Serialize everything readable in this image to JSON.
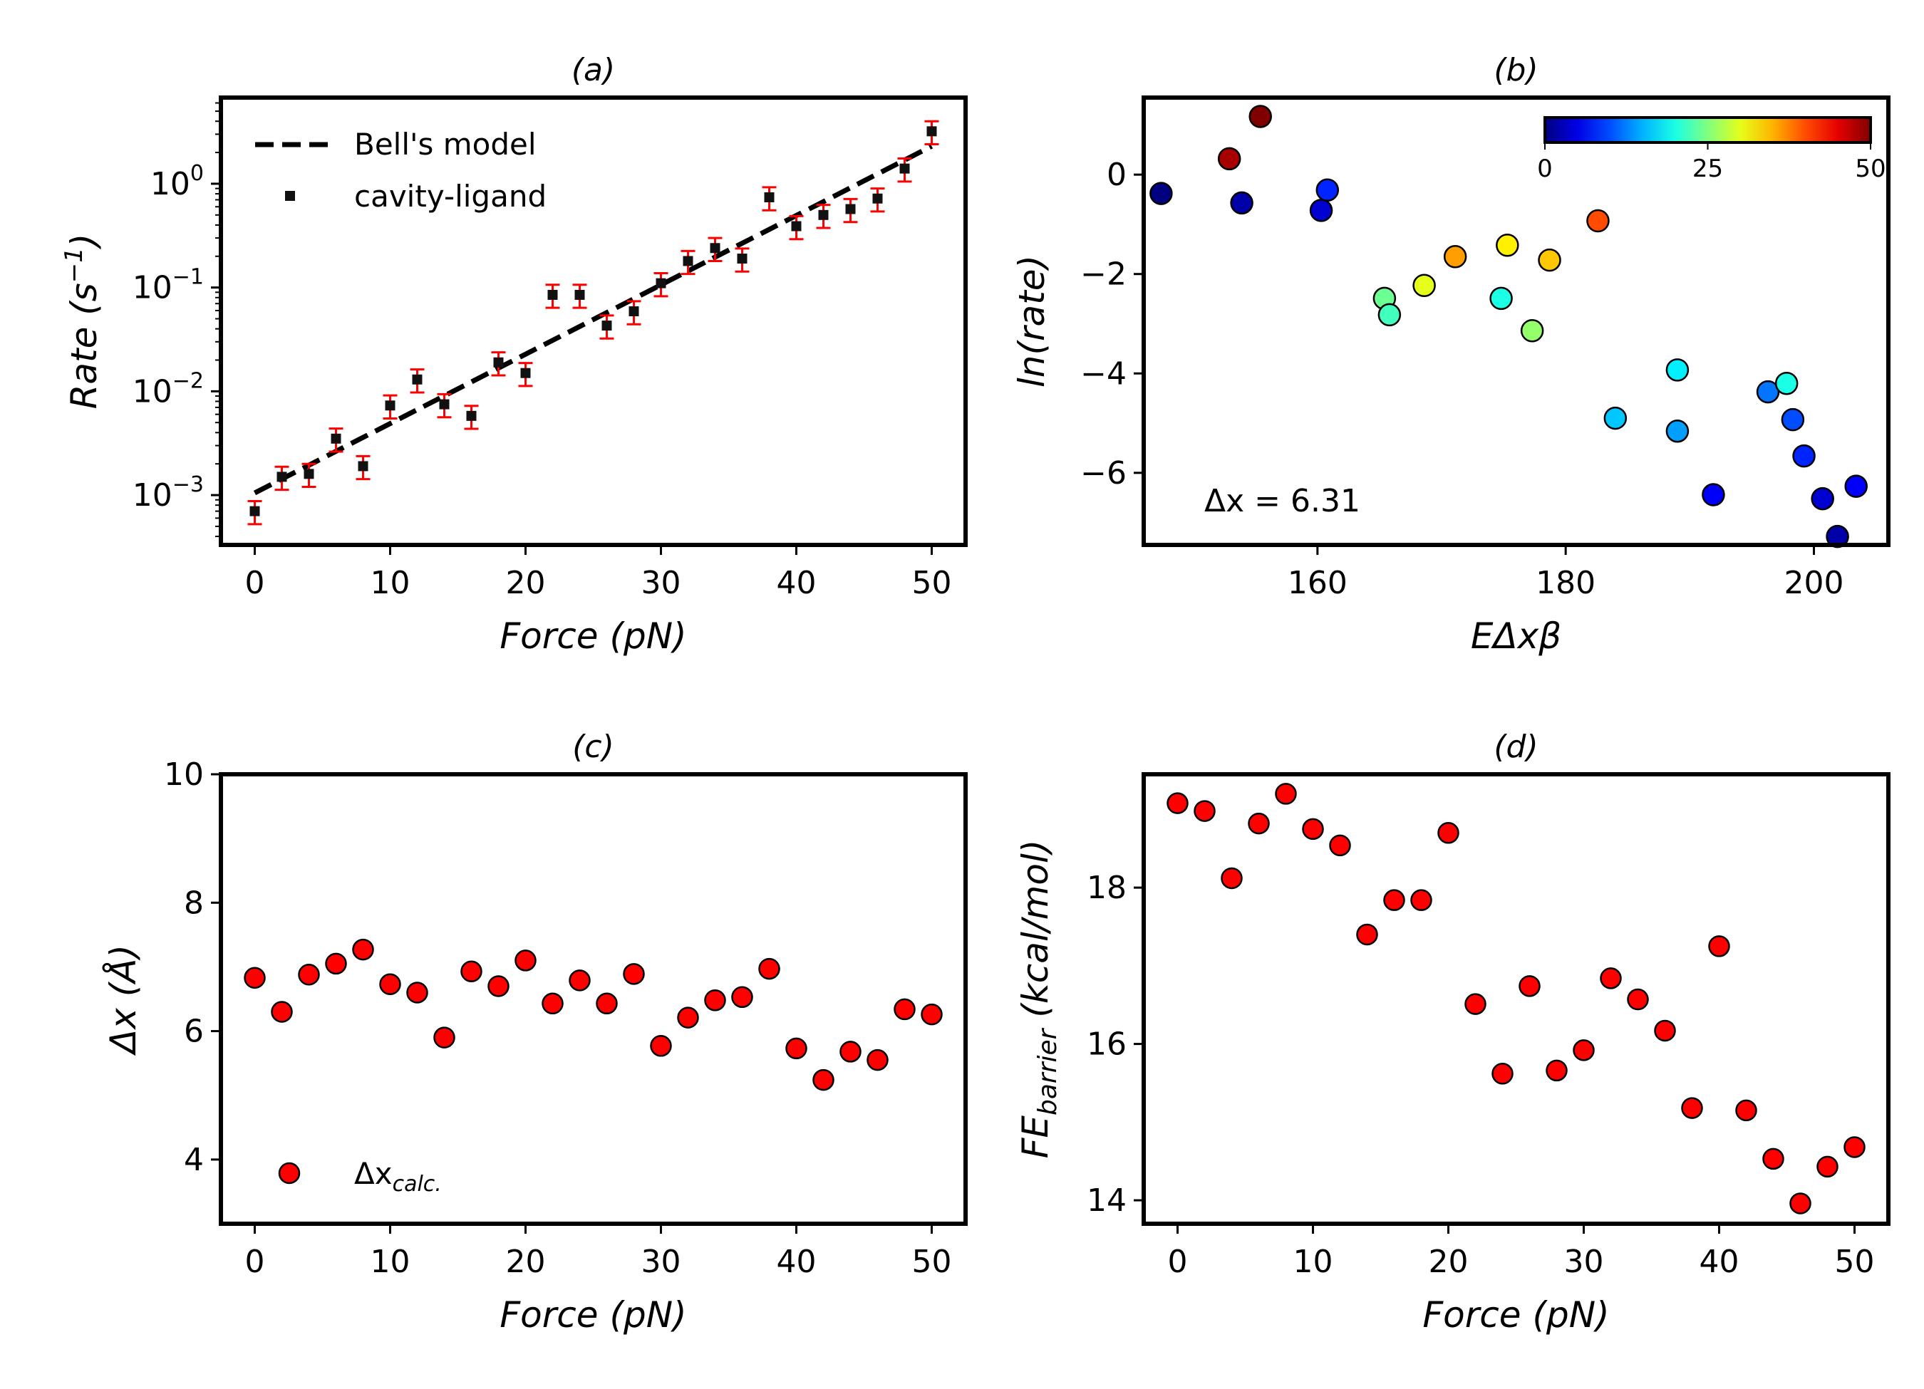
{
  "chart_data": [
    {
      "panel": "a",
      "type": "scatter",
      "title": "(a)",
      "xlabel": "Force (pN)",
      "ylabel": "Rate (s⁻¹)",
      "yscale": "log",
      "xlim": [
        -2.5,
        52.5
      ],
      "xticks": [
        0,
        10,
        20,
        30,
        40,
        50
      ],
      "yticks": [
        {
          "value": 0.001,
          "base": "10",
          "exp": "−3"
        },
        {
          "value": 0.01,
          "base": "10",
          "exp": "−2"
        },
        {
          "value": 0.1,
          "base": "10",
          "exp": "−1"
        },
        {
          "value": 1,
          "base": "10",
          "exp": "0"
        }
      ],
      "legend": {
        "placement": "upper-left",
        "entries": [
          "Bell's model",
          "cavity-ligand"
        ]
      },
      "series": [
        {
          "name": "cavity-ligand",
          "marker": "square",
          "color": "#111111",
          "errorbar_color": "#ff0000",
          "x": [
            0,
            2,
            4,
            6,
            8,
            10,
            12,
            14,
            16,
            18,
            20,
            22,
            24,
            26,
            28,
            30,
            32,
            34,
            36,
            38,
            40,
            42,
            44,
            46,
            48,
            50
          ],
          "y": [
            0.0007,
            0.0015,
            0.0016,
            0.0035,
            0.0019,
            0.0073,
            0.013,
            0.0075,
            0.0058,
            0.019,
            0.015,
            0.085,
            0.085,
            0.043,
            0.059,
            0.11,
            0.18,
            0.24,
            0.19,
            0.74,
            0.39,
            0.5,
            0.57,
            0.72,
            1.4,
            3.2
          ],
          "yerr_rel": 0.25
        },
        {
          "name": "Bell's model",
          "type": "line",
          "style": "dashed",
          "color": "#000000",
          "x": [
            0,
            50
          ],
          "y": [
            0.00105,
            2.3
          ]
        }
      ]
    },
    {
      "panel": "b",
      "type": "scatter",
      "title": "(b)",
      "xlabel": "EΔxβ",
      "ylabel": "ln(rate)",
      "xlim": [
        146,
        206
      ],
      "ylim": [
        -7.45,
        1.55
      ],
      "xticks": [
        160,
        180,
        200
      ],
      "yticks": [
        0,
        -2,
        -4,
        -6
      ],
      "annotation": "Δx = 6.31",
      "colorbar": {
        "colormap": "jet",
        "range": [
          0,
          50
        ],
        "ticks": [
          0,
          25,
          50
        ],
        "placement": "top-right"
      },
      "points": [
        {
          "x": 147.4,
          "y": -0.38,
          "c": 0
        },
        {
          "x": 152.9,
          "y": 0.32,
          "c": 48
        },
        {
          "x": 153.9,
          "y": -0.57,
          "c": 2
        },
        {
          "x": 155.4,
          "y": 1.17,
          "c": 50
        },
        {
          "x": 160.3,
          "y": -0.72,
          "c": 4
        },
        {
          "x": 160.8,
          "y": -0.31,
          "c": 8
        },
        {
          "x": 165.4,
          "y": -2.49,
          "c": 24
        },
        {
          "x": 165.8,
          "y": -2.82,
          "c": 22
        },
        {
          "x": 168.6,
          "y": -2.23,
          "c": 30
        },
        {
          "x": 171.1,
          "y": -1.65,
          "c": 36
        },
        {
          "x": 174.8,
          "y": -2.49,
          "c": 20
        },
        {
          "x": 175.3,
          "y": -1.42,
          "c": 32
        },
        {
          "x": 177.3,
          "y": -3.14,
          "c": 26
        },
        {
          "x": 178.7,
          "y": -1.72,
          "c": 34
        },
        {
          "x": 182.6,
          "y": -0.93,
          "c": 40
        },
        {
          "x": 184.0,
          "y": -4.9,
          "c": 16
        },
        {
          "x": 189.0,
          "y": -3.93,
          "c": 18
        },
        {
          "x": 189.0,
          "y": -5.16,
          "c": 14
        },
        {
          "x": 191.9,
          "y": -6.44,
          "c": 6
        },
        {
          "x": 196.3,
          "y": -4.37,
          "c": 12
        },
        {
          "x": 197.8,
          "y": -4.2,
          "c": 20
        },
        {
          "x": 198.3,
          "y": -4.93,
          "c": 10
        },
        {
          "x": 199.2,
          "y": -5.66,
          "c": 8
        },
        {
          "x": 200.7,
          "y": -6.52,
          "c": 4
        },
        {
          "x": 201.9,
          "y": -7.28,
          "c": 2
        },
        {
          "x": 203.4,
          "y": -6.27,
          "c": 6
        }
      ]
    },
    {
      "panel": "c",
      "type": "scatter",
      "title": "(c)",
      "xlabel": "Force (pN)",
      "ylabel": "Δx (Å)",
      "xlim": [
        -2.5,
        52.5
      ],
      "ylim": [
        3.0,
        10.0
      ],
      "xticks": [
        0,
        10,
        20,
        30,
        40,
        50
      ],
      "yticks": [
        4,
        6,
        8,
        10
      ],
      "legend": {
        "placement": "lower-left",
        "entries": [
          "Δxcalc."
        ]
      },
      "series": [
        {
          "name": "Δxcalc.",
          "marker": "circle",
          "color": "#ff0000",
          "x": [
            0,
            2,
            4,
            6,
            8,
            10,
            12,
            14,
            16,
            18,
            20,
            22,
            24,
            26,
            28,
            30,
            32,
            34,
            36,
            38,
            40,
            42,
            44,
            46,
            48,
            50
          ],
          "y": [
            6.83,
            6.3,
            6.88,
            7.05,
            7.27,
            6.73,
            6.6,
            5.9,
            6.93,
            6.7,
            7.1,
            6.43,
            6.79,
            6.43,
            6.89,
            5.77,
            6.21,
            6.48,
            6.53,
            6.97,
            5.73,
            5.24,
            5.68,
            5.55,
            6.34,
            6.26
          ]
        }
      ]
    },
    {
      "panel": "d",
      "type": "scatter",
      "title": "(d)",
      "xlabel": "Force (pN)",
      "ylabel": "FE_barrier (kcal/mol)",
      "xlabel_parts": {
        "main": "FE",
        "sub": "barrier",
        "rest": " (kcal/mol)"
      },
      "xlim": [
        -2.5,
        52.5
      ],
      "ylim": [
        13.7,
        19.45
      ],
      "xticks": [
        0,
        10,
        20,
        30,
        40,
        50
      ],
      "yticks": [
        14,
        16,
        18
      ],
      "series": [
        {
          "name": "",
          "marker": "circle",
          "color": "#ff0000",
          "x": [
            0,
            2,
            4,
            6,
            8,
            10,
            12,
            14,
            16,
            18,
            20,
            22,
            24,
            26,
            28,
            30,
            32,
            34,
            36,
            38,
            40,
            42,
            44,
            46,
            48,
            50
          ],
          "y": [
            19.08,
            18.98,
            18.12,
            18.82,
            19.2,
            18.75,
            18.54,
            17.4,
            17.84,
            17.84,
            18.7,
            16.51,
            15.62,
            16.74,
            15.66,
            15.92,
            16.84,
            16.57,
            16.17,
            15.18,
            17.25,
            15.15,
            14.53,
            13.96,
            14.43,
            14.68
          ]
        }
      ]
    }
  ]
}
